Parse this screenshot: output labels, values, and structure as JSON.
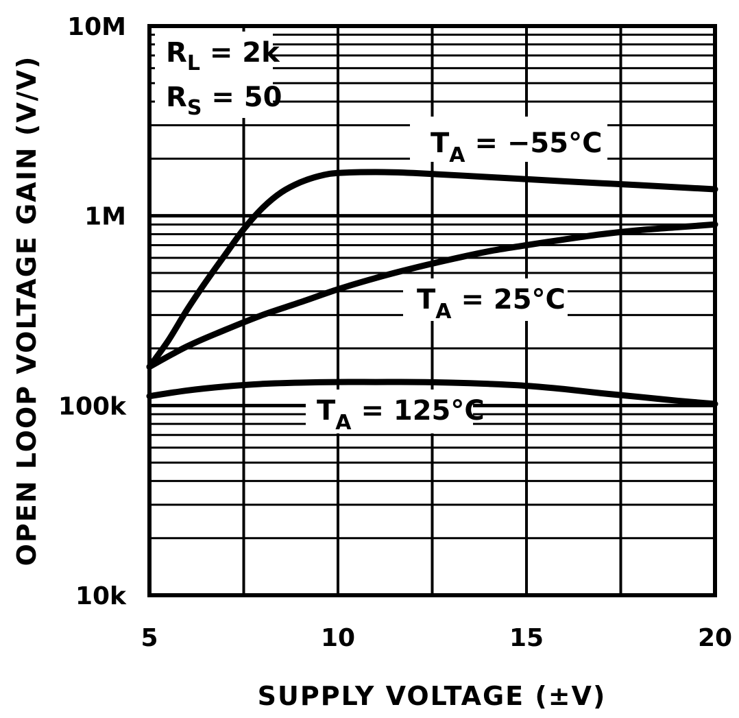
{
  "chart_data": {
    "type": "line",
    "xlabel": "SUPPLY VOLTAGE (±V)",
    "ylabel": "OPEN LOOP VOLTAGE GAIN (V/V)",
    "xlim": [
      5,
      20
    ],
    "ylim": [
      10000,
      10000000
    ],
    "yscale": "log",
    "grid": true,
    "x_ticks": [
      {
        "value": 5,
        "label": "5"
      },
      {
        "value": 10,
        "label": "10"
      },
      {
        "value": 15,
        "label": "15"
      },
      {
        "value": 20,
        "label": "20"
      }
    ],
    "y_ticks": [
      {
        "value": 10000,
        "label": "10k"
      },
      {
        "value": 100000,
        "label": "100k"
      },
      {
        "value": 1000000,
        "label": "1M"
      },
      {
        "value": 10000000,
        "label": "10M"
      }
    ],
    "conditions": [
      {
        "main": "R",
        "sub": "L",
        "rest": " = 2k"
      },
      {
        "main": "R",
        "sub": "S",
        "rest": " = 50"
      }
    ],
    "series": [
      {
        "name": "TA = −55°C",
        "label": {
          "main": "T",
          "sub": "A",
          "rest": " = −55°C"
        },
        "x": [
          5,
          5.5,
          6,
          6.5,
          7,
          7.5,
          8,
          8.5,
          9,
          9.5,
          10,
          11,
          12,
          14,
          16,
          18,
          20
        ],
        "y": [
          160000,
          220000,
          320000,
          450000,
          620000,
          850000,
          1100000,
          1330000,
          1500000,
          1620000,
          1680000,
          1700000,
          1680000,
          1600000,
          1520000,
          1450000,
          1380000
        ]
      },
      {
        "name": "TA = 25°C",
        "label": {
          "main": "T",
          "sub": "A",
          "rest": " = 25°C"
        },
        "x": [
          5,
          6,
          7,
          8,
          9,
          10,
          11,
          12,
          13,
          14,
          15,
          16,
          17,
          18,
          19,
          20
        ],
        "y": [
          160000,
          205000,
          250000,
          300000,
          350000,
          410000,
          470000,
          530000,
          590000,
          650000,
          700000,
          750000,
          800000,
          840000,
          870000,
          900000
        ]
      },
      {
        "name": "TA = 125°C",
        "label": {
          "main": "T",
          "sub": "A",
          "rest": " = 125°C"
        },
        "x": [
          5,
          6,
          7,
          8,
          9,
          10,
          11,
          12,
          13,
          14,
          15,
          16,
          17,
          18,
          19,
          20
        ],
        "y": [
          112000,
          120000,
          126000,
          130000,
          132000,
          133000,
          133000,
          133000,
          132000,
          130000,
          127000,
          122000,
          116000,
          111000,
          106000,
          102000
        ]
      }
    ]
  }
}
